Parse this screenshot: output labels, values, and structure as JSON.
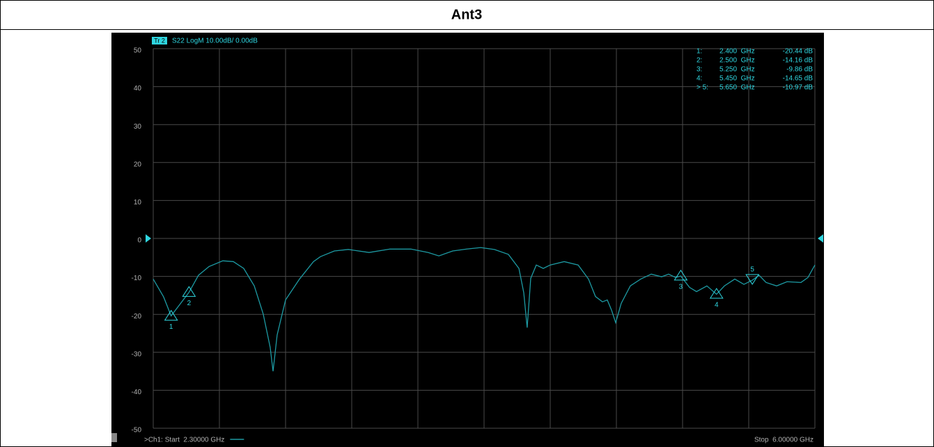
{
  "chart_data": {
    "type": "line",
    "title": "Ant3",
    "trace_badge": "Tr 2",
    "trace_info": "S22 LogM 10.00dB/ 0.00dB",
    "start_label": ">Ch1: Start  2.30000 GHz",
    "stop_label": "Stop  6.00000 GHz",
    "xlim": [
      2.3,
      6.0
    ],
    "ylim": [
      -50,
      50
    ],
    "xticks": [
      2.3,
      2.67,
      3.04,
      3.41,
      3.78,
      4.15,
      4.52,
      4.89,
      5.26,
      5.63,
      6.0
    ],
    "yticks": [
      50,
      40,
      30,
      20,
      10,
      0,
      -10,
      -20,
      -30,
      -40,
      -50
    ],
    "grid": true,
    "reference_level": 0,
    "x": [
      2.3,
      2.358,
      2.4,
      2.5,
      2.553,
      2.612,
      2.689,
      2.748,
      2.806,
      2.865,
      2.915,
      2.954,
      2.97,
      2.993,
      3.04,
      3.118,
      3.196,
      3.235,
      3.313,
      3.391,
      3.507,
      3.624,
      3.741,
      3.838,
      3.897,
      3.975,
      4.053,
      4.131,
      4.208,
      4.286,
      4.345,
      4.372,
      4.391,
      4.411,
      4.442,
      4.481,
      4.52,
      4.598,
      4.676,
      4.734,
      4.773,
      4.812,
      4.839,
      4.863,
      4.886,
      4.917,
      4.968,
      5.026,
      5.085,
      5.143,
      5.182,
      5.221,
      5.25,
      5.299,
      5.338,
      5.396,
      5.45,
      5.494,
      5.552,
      5.603,
      5.65,
      5.688,
      5.727,
      5.786,
      5.844,
      5.922,
      5.961,
      6.0
    ],
    "series": [
      {
        "name": "S22",
        "color": "#1d9aa3",
        "values": [
          -10.7,
          -15.4,
          -20.4,
          -14.2,
          -9.7,
          -7.4,
          -5.9,
          -6.1,
          -7.9,
          -12.5,
          -19.9,
          -28.7,
          -35.0,
          -25.4,
          -16.2,
          -10.7,
          -6.1,
          -4.8,
          -3.3,
          -2.9,
          -3.7,
          -2.8,
          -2.8,
          -3.7,
          -4.6,
          -3.3,
          -2.8,
          -2.4,
          -2.9,
          -4.2,
          -7.9,
          -14.3,
          -23.5,
          -10.5,
          -7.0,
          -7.9,
          -7.0,
          -6.1,
          -7.0,
          -10.7,
          -15.3,
          -16.7,
          -16.2,
          -18.9,
          -22.2,
          -17.1,
          -12.5,
          -10.7,
          -9.4,
          -10.1,
          -9.4,
          -10.3,
          -9.9,
          -12.9,
          -14.0,
          -12.5,
          -14.7,
          -12.5,
          -10.7,
          -12.1,
          -11.0,
          -9.7,
          -11.6,
          -12.5,
          -11.4,
          -11.6,
          -10.3,
          -7.0
        ]
      }
    ],
    "markers": [
      {
        "label": "1",
        "index_label": "1:",
        "x": 2.4,
        "y": -20.44,
        "x_label": "2.400  GHz",
        "y_label": "-20.44 dB",
        "active": false
      },
      {
        "label": "2",
        "index_label": "2:",
        "x": 2.5,
        "y": -14.16,
        "x_label": "2.500  GHz",
        "y_label": "-14.16 dB",
        "active": false
      },
      {
        "label": "3",
        "index_label": "3:",
        "x": 5.25,
        "y": -9.86,
        "x_label": "5.250  GHz",
        "y_label": "-9.86 dB",
        "active": false
      },
      {
        "label": "4",
        "index_label": "4:",
        "x": 5.45,
        "y": -14.65,
        "x_label": "5.450  GHz",
        "y_label": "-14.65 dB",
        "active": false
      },
      {
        "label": "5",
        "index_label": "> 5:",
        "x": 5.65,
        "y": -10.97,
        "x_label": "5.650  GHz",
        "y_label": "-10.97 dB",
        "active": true
      }
    ]
  }
}
